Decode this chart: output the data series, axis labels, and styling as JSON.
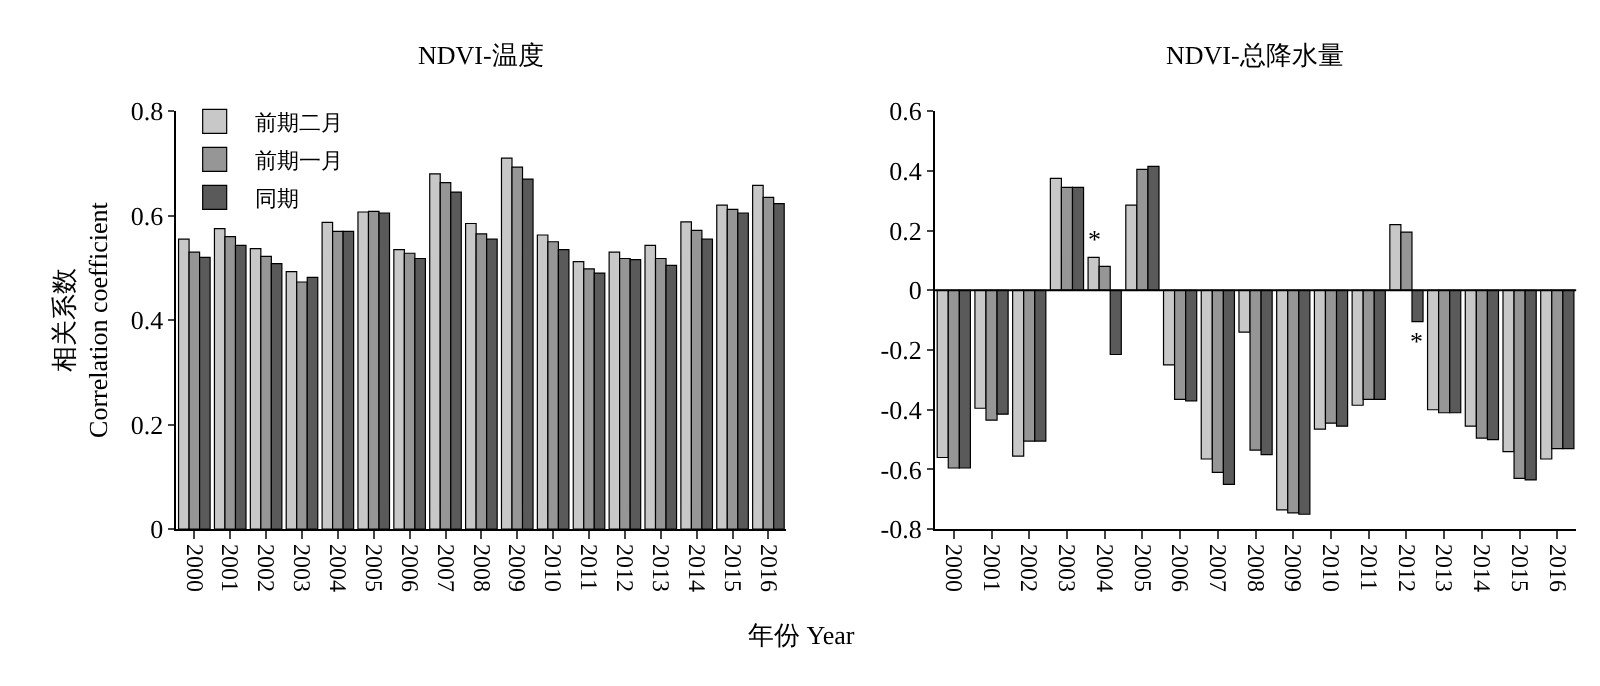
{
  "chart_data": [
    {
      "type": "bar",
      "title": "NDVI-温度",
      "xlabel": "年份 Year",
      "ylabel": "相关系数\nCorrelation coefficient",
      "categories": [
        "2000",
        "2001",
        "2002",
        "2003",
        "2004",
        "2005",
        "2006",
        "2007",
        "2008",
        "2009",
        "2010",
        "2011",
        "2012",
        "2013",
        "2014",
        "2015",
        "2016"
      ],
      "series": [
        {
          "name": "前期二月",
          "color": "#c8c8c8",
          "values": [
            0.555,
            0.575,
            0.537,
            0.493,
            0.587,
            0.607,
            0.535,
            0.68,
            0.585,
            0.71,
            0.563,
            0.512,
            0.53,
            0.543,
            0.588,
            0.62,
            0.658
          ]
        },
        {
          "name": "前期一月",
          "color": "#969696",
          "values": [
            0.53,
            0.56,
            0.522,
            0.473,
            0.57,
            0.608,
            0.528,
            0.663,
            0.565,
            0.693,
            0.55,
            0.498,
            0.518,
            0.518,
            0.572,
            0.612,
            0.635
          ]
        },
        {
          "name": "同期",
          "color": "#5a5a5a",
          "values": [
            0.52,
            0.543,
            0.508,
            0.482,
            0.57,
            0.605,
            0.518,
            0.645,
            0.555,
            0.67,
            0.535,
            0.49,
            0.516,
            0.505,
            0.555,
            0.605,
            0.623
          ]
        }
      ],
      "ylim": [
        0,
        0.8
      ],
      "yticks": [
        0,
        0.2,
        0.4,
        0.6,
        0.8
      ],
      "legend": "top left"
    },
    {
      "type": "bar",
      "title": "NDVI-总降水量",
      "categories": [
        "2000",
        "2001",
        "2002",
        "2003",
        "2004",
        "2005",
        "2006",
        "2007",
        "2008",
        "2009",
        "2010",
        "2011",
        "2012",
        "2013",
        "2014",
        "2015",
        "2016"
      ],
      "series": [
        {
          "color": "#c8c8c8",
          "values": [
            -0.56,
            -0.395,
            -0.555,
            0.375,
            0.11,
            0.285,
            -0.25,
            -0.565,
            -0.14,
            -0.735,
            -0.465,
            -0.385,
            0.22,
            -0.4,
            -0.455,
            -0.54,
            -0.565
          ]
        },
        {
          "color": "#969696",
          "values": [
            -0.595,
            -0.435,
            -0.505,
            0.345,
            0.08,
            0.405,
            -0.365,
            -0.61,
            -0.535,
            -0.745,
            -0.445,
            -0.365,
            0.195,
            -0.41,
            -0.495,
            -0.63,
            -0.53
          ]
        },
        {
          "color": "#5a5a5a",
          "values": [
            -0.595,
            -0.415,
            -0.505,
            0.345,
            -0.215,
            0.415,
            -0.37,
            -0.65,
            -0.55,
            -0.75,
            -0.455,
            -0.365,
            -0.105,
            -0.41,
            -0.5,
            -0.635,
            -0.53
          ]
        }
      ],
      "annotations": [
        {
          "text": "*",
          "x": "2004",
          "y": 0.11
        },
        {
          "text": "*",
          "x": "2012",
          "y": -0.105
        }
      ],
      "ref_lines": [
        {
          "axis": "y",
          "value": 0,
          "color": "#000000"
        }
      ],
      "ylim": [
        -0.8,
        0.6
      ],
      "yticks": [
        -0.8,
        -0.6,
        -0.4,
        -0.2,
        0,
        0.2,
        0.4,
        0.6
      ],
      "legend": false
    }
  ]
}
